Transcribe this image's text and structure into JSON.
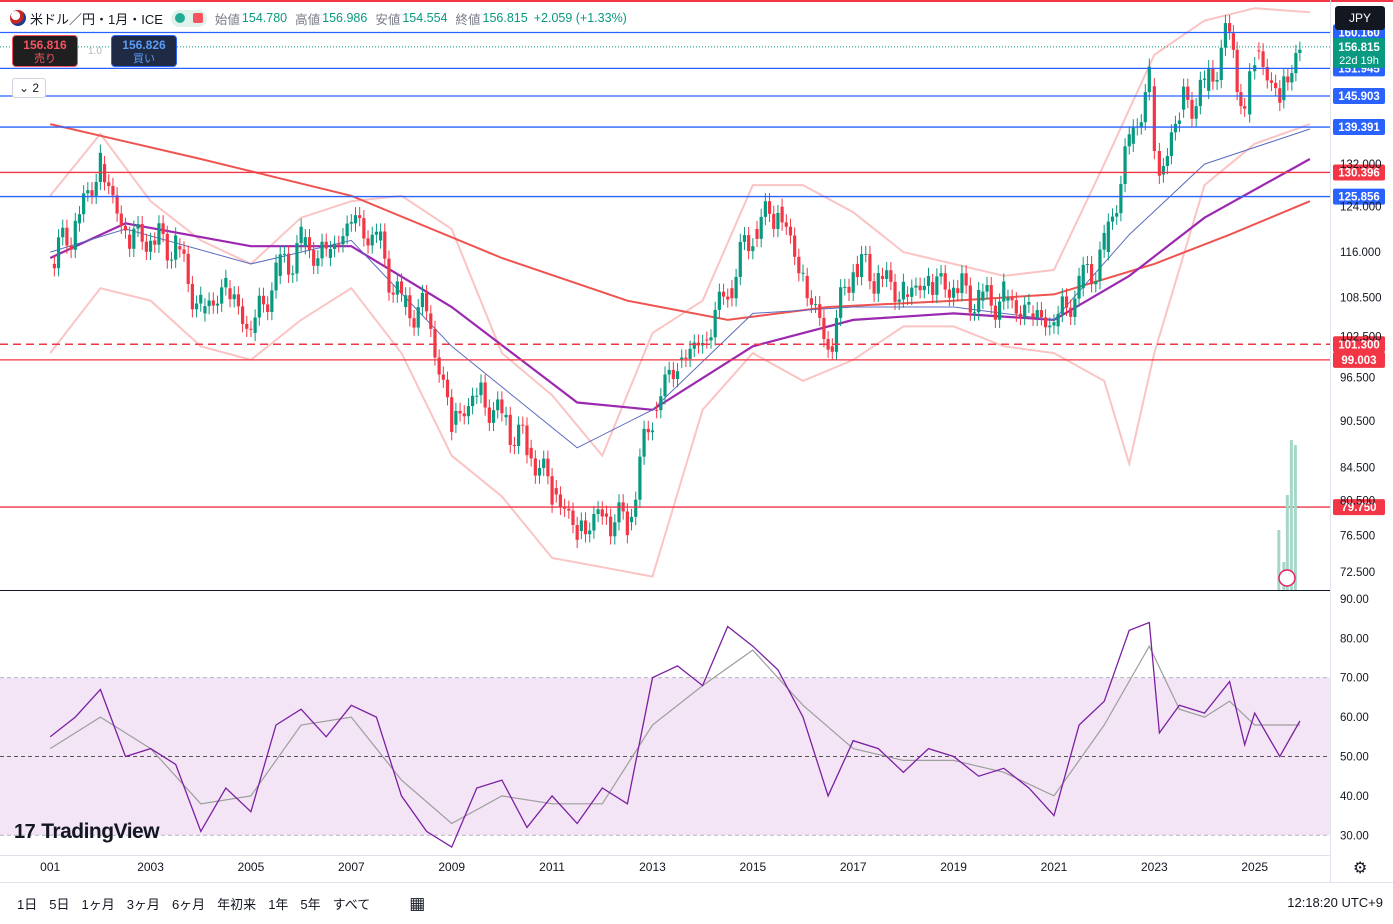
{
  "header": {
    "symbol": "米ドル／円・1月・ICE",
    "open_label": "始値",
    "open_value": "154.780",
    "high_label": "高値",
    "high_value": "156.986",
    "low_label": "安値",
    "low_value": "154.554",
    "close_label": "終値",
    "close_value": "156.815",
    "change_value": "+2.059 (+1.33%)"
  },
  "sell_box": {
    "price": "156.816",
    "label": "売り"
  },
  "buy_box": {
    "price": "156.826",
    "label": "買い"
  },
  "spread": "1.0",
  "collapse_label": "2",
  "currency_button": "JPY",
  "logo_text": "TradingView",
  "timeframes": [
    "1日",
    "5日",
    "1ヶ月",
    "3ヶ月",
    "6ヶ月",
    "年初来",
    "1年",
    "5年",
    "すべて"
  ],
  "clock": "12:18:20 UTC+9",
  "colors": {
    "up": "#089981",
    "down": "#f23645",
    "ma200": "#ef5350",
    "ma_purple": "#9c27b0",
    "line_blue": "#2962ff",
    "rsi": "#7b1fa2",
    "rsi_band": "#f3e5f5"
  },
  "chart_data": [
    {
      "type": "candlestick",
      "timeframe": "monthly",
      "x_ticks": [
        "001",
        "2003",
        "2005",
        "2007",
        "2009",
        "2011",
        "2013",
        "2015",
        "2017",
        "2019",
        "2021",
        "2023",
        "2025"
      ],
      "y_ticks": [
        72.5,
        76.5,
        80.5,
        84.5,
        90.5,
        96.5,
        102.5,
        108.5,
        116.0,
        124.0,
        132.0
      ],
      "y_tick_labels": [
        "72.500",
        "76.500",
        "80.500",
        "84.500",
        "90.500",
        "96.500",
        "102.500",
        "108.500",
        "116.000",
        "124.000",
        "132.000"
      ],
      "ylim": [
        70.6,
        168.0
      ],
      "y_scale": "log",
      "close_series": [
        {
          "x": 2001.0,
          "y": 114
        },
        {
          "x": 2001.5,
          "y": 121
        },
        {
          "x": 2002.0,
          "y": 132
        },
        {
          "x": 2002.5,
          "y": 119
        },
        {
          "x": 2003.0,
          "y": 118
        },
        {
          "x": 2003.5,
          "y": 117
        },
        {
          "x": 2004.0,
          "y": 106
        },
        {
          "x": 2004.5,
          "y": 110
        },
        {
          "x": 2005.0,
          "y": 103
        },
        {
          "x": 2005.5,
          "y": 112
        },
        {
          "x": 2006.0,
          "y": 117
        },
        {
          "x": 2006.5,
          "y": 115
        },
        {
          "x": 2007.0,
          "y": 121
        },
        {
          "x": 2007.5,
          "y": 118
        },
        {
          "x": 2008.0,
          "y": 107
        },
        {
          "x": 2008.5,
          "y": 106
        },
        {
          "x": 2009.0,
          "y": 90
        },
        {
          "x": 2009.5,
          "y": 94
        },
        {
          "x": 2010.0,
          "y": 91
        },
        {
          "x": 2010.5,
          "y": 87
        },
        {
          "x": 2011.0,
          "y": 82
        },
        {
          "x": 2011.5,
          "y": 77
        },
        {
          "x": 2012.0,
          "y": 79
        },
        {
          "x": 2012.5,
          "y": 78
        },
        {
          "x": 2013.0,
          "y": 92
        },
        {
          "x": 2013.5,
          "y": 99
        },
        {
          "x": 2014.0,
          "y": 102
        },
        {
          "x": 2014.5,
          "y": 110
        },
        {
          "x": 2015.0,
          "y": 120
        },
        {
          "x": 2015.5,
          "y": 124
        },
        {
          "x": 2016.0,
          "y": 112
        },
        {
          "x": 2016.5,
          "y": 101
        },
        {
          "x": 2017.0,
          "y": 114
        },
        {
          "x": 2017.5,
          "y": 112
        },
        {
          "x": 2018.0,
          "y": 109
        },
        {
          "x": 2018.5,
          "y": 111
        },
        {
          "x": 2019.0,
          "y": 110
        },
        {
          "x": 2019.5,
          "y": 108
        },
        {
          "x": 2020.0,
          "y": 108
        },
        {
          "x": 2020.5,
          "y": 106
        },
        {
          "x": 2021.0,
          "y": 104
        },
        {
          "x": 2021.5,
          "y": 110
        },
        {
          "x": 2022.0,
          "y": 116
        },
        {
          "x": 2022.5,
          "y": 136
        },
        {
          "x": 2022.9,
          "y": 148
        },
        {
          "x": 2023.1,
          "y": 130
        },
        {
          "x": 2023.5,
          "y": 143
        },
        {
          "x": 2024.0,
          "y": 147
        },
        {
          "x": 2024.5,
          "y": 160
        },
        {
          "x": 2024.8,
          "y": 142
        },
        {
          "x": 2025.0,
          "y": 156
        },
        {
          "x": 2025.5,
          "y": 145
        },
        {
          "x": 2025.9,
          "y": 156.8
        }
      ],
      "ma200": [
        {
          "x": 2001.0,
          "y": 140
        },
        {
          "x": 2004.0,
          "y": 133
        },
        {
          "x": 2007.0,
          "y": 126
        },
        {
          "x": 2010.0,
          "y": 115
        },
        {
          "x": 2012.5,
          "y": 108
        },
        {
          "x": 2014.5,
          "y": 105
        },
        {
          "x": 2016.5,
          "y": 107
        },
        {
          "x": 2019.0,
          "y": 108
        },
        {
          "x": 2021.0,
          "y": 109
        },
        {
          "x": 2023.0,
          "y": 114
        },
        {
          "x": 2024.5,
          "y": 119
        },
        {
          "x": 2026.1,
          "y": 125
        }
      ],
      "ma_purple": [
        {
          "x": 2001.0,
          "y": 115
        },
        {
          "x": 2002.5,
          "y": 121
        },
        {
          "x": 2005.0,
          "y": 117
        },
        {
          "x": 2007.0,
          "y": 117
        },
        {
          "x": 2009.0,
          "y": 107
        },
        {
          "x": 2011.5,
          "y": 93
        },
        {
          "x": 2013.0,
          "y": 92
        },
        {
          "x": 2015.0,
          "y": 101
        },
        {
          "x": 2017.0,
          "y": 105
        },
        {
          "x": 2019.0,
          "y": 106
        },
        {
          "x": 2021.0,
          "y": 105
        },
        {
          "x": 2022.5,
          "y": 112
        },
        {
          "x": 2024.0,
          "y": 122
        },
        {
          "x": 2026.1,
          "y": 133
        }
      ],
      "ma_blue": [
        {
          "x": 2001.0,
          "y": 116
        },
        {
          "x": 2002.5,
          "y": 120
        },
        {
          "x": 2005.0,
          "y": 114
        },
        {
          "x": 2007.0,
          "y": 118
        },
        {
          "x": 2009.0,
          "y": 101
        },
        {
          "x": 2011.5,
          "y": 87
        },
        {
          "x": 2013.0,
          "y": 92
        },
        {
          "x": 2015.0,
          "y": 106
        },
        {
          "x": 2017.0,
          "y": 107
        },
        {
          "x": 2019.0,
          "y": 107
        },
        {
          "x": 2021.0,
          "y": 105
        },
        {
          "x": 2022.5,
          "y": 119
        },
        {
          "x": 2024.0,
          "y": 132
        },
        {
          "x": 2026.1,
          "y": 139
        }
      ],
      "bb_upper": [
        {
          "x": 2001.0,
          "y": 126
        },
        {
          "x": 2002.0,
          "y": 138
        },
        {
          "x": 2003.0,
          "y": 125
        },
        {
          "x": 2004.0,
          "y": 118
        },
        {
          "x": 2005.0,
          "y": 114
        },
        {
          "x": 2006.0,
          "y": 122
        },
        {
          "x": 2007.0,
          "y": 125
        },
        {
          "x": 2008.0,
          "y": 126
        },
        {
          "x": 2009.0,
          "y": 120
        },
        {
          "x": 2010.0,
          "y": 100
        },
        {
          "x": 2011.0,
          "y": 94
        },
        {
          "x": 2012.0,
          "y": 86
        },
        {
          "x": 2013.0,
          "y": 103
        },
        {
          "x": 2014.0,
          "y": 108
        },
        {
          "x": 2015.0,
          "y": 128
        },
        {
          "x": 2016.0,
          "y": 128
        },
        {
          "x": 2017.0,
          "y": 123
        },
        {
          "x": 2018.0,
          "y": 116
        },
        {
          "x": 2019.0,
          "y": 114
        },
        {
          "x": 2020.0,
          "y": 112
        },
        {
          "x": 2021.0,
          "y": 113
        },
        {
          "x": 2022.0,
          "y": 132
        },
        {
          "x": 2023.0,
          "y": 155
        },
        {
          "x": 2024.0,
          "y": 163
        },
        {
          "x": 2025.0,
          "y": 166
        },
        {
          "x": 2026.1,
          "y": 165
        }
      ],
      "bb_lower": [
        {
          "x": 2001.0,
          "y": 100
        },
        {
          "x": 2002.0,
          "y": 110
        },
        {
          "x": 2003.0,
          "y": 108
        },
        {
          "x": 2004.0,
          "y": 101
        },
        {
          "x": 2005.0,
          "y": 99
        },
        {
          "x": 2006.0,
          "y": 105
        },
        {
          "x": 2007.0,
          "y": 110
        },
        {
          "x": 2008.0,
          "y": 100
        },
        {
          "x": 2009.0,
          "y": 86
        },
        {
          "x": 2010.0,
          "y": 81
        },
        {
          "x": 2011.0,
          "y": 74
        },
        {
          "x": 2012.0,
          "y": 73
        },
        {
          "x": 2013.0,
          "y": 72
        },
        {
          "x": 2014.0,
          "y": 92
        },
        {
          "x": 2015.0,
          "y": 100
        },
        {
          "x": 2016.0,
          "y": 96
        },
        {
          "x": 2017.0,
          "y": 99
        },
        {
          "x": 2018.0,
          "y": 104
        },
        {
          "x": 2019.0,
          "y": 104
        },
        {
          "x": 2020.0,
          "y": 101
        },
        {
          "x": 2021.0,
          "y": 100
        },
        {
          "x": 2022.0,
          "y": 96
        },
        {
          "x": 2022.5,
          "y": 85
        },
        {
          "x": 2023.0,
          "y": 100
        },
        {
          "x": 2024.0,
          "y": 128
        },
        {
          "x": 2025.0,
          "y": 136
        },
        {
          "x": 2026.1,
          "y": 140
        }
      ],
      "horizontal_levels": [
        {
          "price": 160.16,
          "label": "160.160",
          "color": "#2962ff",
          "style": "solid",
          "label_bg": "#2962ff"
        },
        {
          "price": 151.945,
          "label": "151.945",
          "color": "#2962ff",
          "style": "solid",
          "label_bg": "#2962ff"
        },
        {
          "price": 145.903,
          "label": "145.903",
          "color": "#2962ff",
          "style": "solid",
          "label_bg": "#2962ff"
        },
        {
          "price": 139.391,
          "label": "139.391",
          "color": "#2962ff",
          "style": "solid",
          "label_bg": "#2962ff"
        },
        {
          "price": 130.396,
          "label": "130.396",
          "color": "#f23645",
          "style": "solid",
          "label_bg": "#f23645"
        },
        {
          "price": 125.856,
          "label": "125.856",
          "color": "#2962ff",
          "style": "solid",
          "label_bg": "#2962ff"
        },
        {
          "price": 101.3,
          "label": "101.300",
          "color": "#f23645",
          "style": "dashed",
          "label_bg": "#f23645"
        },
        {
          "price": 99.003,
          "label": "99.003",
          "color": "#f23645",
          "style": "solid",
          "label_bg": "#f23645"
        },
        {
          "price": 79.75,
          "label": "79.750",
          "color": "#f23645",
          "style": "solid",
          "label_bg": "#f23645"
        }
      ],
      "last_price": {
        "price": 156.815,
        "label": "156.815",
        "countdown": "22d 19h",
        "color": "#089981"
      }
    },
    {
      "type": "line",
      "name": "RSI",
      "ylim": [
        25,
        92
      ],
      "y_ticks": [
        30,
        40,
        50,
        60,
        70,
        80,
        90
      ],
      "y_tick_labels": [
        "30.00",
        "40.00",
        "50.00",
        "60.00",
        "70.00",
        "80.00",
        "90.00"
      ],
      "band": [
        30,
        70
      ],
      "midline": 50,
      "rsi": [
        {
          "x": 2001.0,
          "y": 55
        },
        {
          "x": 2001.5,
          "y": 60
        },
        {
          "x": 2002.0,
          "y": 67
        },
        {
          "x": 2002.5,
          "y": 50
        },
        {
          "x": 2003.0,
          "y": 52
        },
        {
          "x": 2003.5,
          "y": 48
        },
        {
          "x": 2004.0,
          "y": 31
        },
        {
          "x": 2004.5,
          "y": 42
        },
        {
          "x": 2005.0,
          "y": 36
        },
        {
          "x": 2005.5,
          "y": 58
        },
        {
          "x": 2006.0,
          "y": 62
        },
        {
          "x": 2006.5,
          "y": 55
        },
        {
          "x": 2007.0,
          "y": 63
        },
        {
          "x": 2007.5,
          "y": 60
        },
        {
          "x": 2008.0,
          "y": 40
        },
        {
          "x": 2008.5,
          "y": 31
        },
        {
          "x": 2009.0,
          "y": 27
        },
        {
          "x": 2009.5,
          "y": 42
        },
        {
          "x": 2010.0,
          "y": 44
        },
        {
          "x": 2010.5,
          "y": 32
        },
        {
          "x": 2011.0,
          "y": 40
        },
        {
          "x": 2011.5,
          "y": 33
        },
        {
          "x": 2012.0,
          "y": 42
        },
        {
          "x": 2012.5,
          "y": 38
        },
        {
          "x": 2013.0,
          "y": 70
        },
        {
          "x": 2013.5,
          "y": 73
        },
        {
          "x": 2014.0,
          "y": 68
        },
        {
          "x": 2014.5,
          "y": 83
        },
        {
          "x": 2015.0,
          "y": 78
        },
        {
          "x": 2015.5,
          "y": 72
        },
        {
          "x": 2016.0,
          "y": 60
        },
        {
          "x": 2016.5,
          "y": 40
        },
        {
          "x": 2017.0,
          "y": 54
        },
        {
          "x": 2017.5,
          "y": 52
        },
        {
          "x": 2018.0,
          "y": 46
        },
        {
          "x": 2018.5,
          "y": 52
        },
        {
          "x": 2019.0,
          "y": 50
        },
        {
          "x": 2019.5,
          "y": 45
        },
        {
          "x": 2020.0,
          "y": 47
        },
        {
          "x": 2020.5,
          "y": 42
        },
        {
          "x": 2021.0,
          "y": 35
        },
        {
          "x": 2021.5,
          "y": 58
        },
        {
          "x": 2022.0,
          "y": 64
        },
        {
          "x": 2022.5,
          "y": 82
        },
        {
          "x": 2022.9,
          "y": 84
        },
        {
          "x": 2023.1,
          "y": 56
        },
        {
          "x": 2023.5,
          "y": 63
        },
        {
          "x": 2024.0,
          "y": 61
        },
        {
          "x": 2024.5,
          "y": 69
        },
        {
          "x": 2024.8,
          "y": 53
        },
        {
          "x": 2025.0,
          "y": 61
        },
        {
          "x": 2025.5,
          "y": 50
        },
        {
          "x": 2025.9,
          "y": 59
        }
      ],
      "rsi_ma": [
        {
          "x": 2001.0,
          "y": 52
        },
        {
          "x": 2002.0,
          "y": 60
        },
        {
          "x": 2003.0,
          "y": 52
        },
        {
          "x": 2004.0,
          "y": 38
        },
        {
          "x": 2005.0,
          "y": 40
        },
        {
          "x": 2006.0,
          "y": 58
        },
        {
          "x": 2007.0,
          "y": 60
        },
        {
          "x": 2008.0,
          "y": 44
        },
        {
          "x": 2009.0,
          "y": 33
        },
        {
          "x": 2010.0,
          "y": 40
        },
        {
          "x": 2011.0,
          "y": 38
        },
        {
          "x": 2012.0,
          "y": 38
        },
        {
          "x": 2013.0,
          "y": 58
        },
        {
          "x": 2014.0,
          "y": 68
        },
        {
          "x": 2015.0,
          "y": 77
        },
        {
          "x": 2016.0,
          "y": 63
        },
        {
          "x": 2017.0,
          "y": 52
        },
        {
          "x": 2018.0,
          "y": 49
        },
        {
          "x": 2019.0,
          "y": 49
        },
        {
          "x": 2020.0,
          "y": 46
        },
        {
          "x": 2021.0,
          "y": 40
        },
        {
          "x": 2022.0,
          "y": 58
        },
        {
          "x": 2022.9,
          "y": 78
        },
        {
          "x": 2023.5,
          "y": 62
        },
        {
          "x": 2024.0,
          "y": 60
        },
        {
          "x": 2024.5,
          "y": 64
        },
        {
          "x": 2025.0,
          "y": 58
        },
        {
          "x": 2025.9,
          "y": 58
        }
      ]
    }
  ]
}
